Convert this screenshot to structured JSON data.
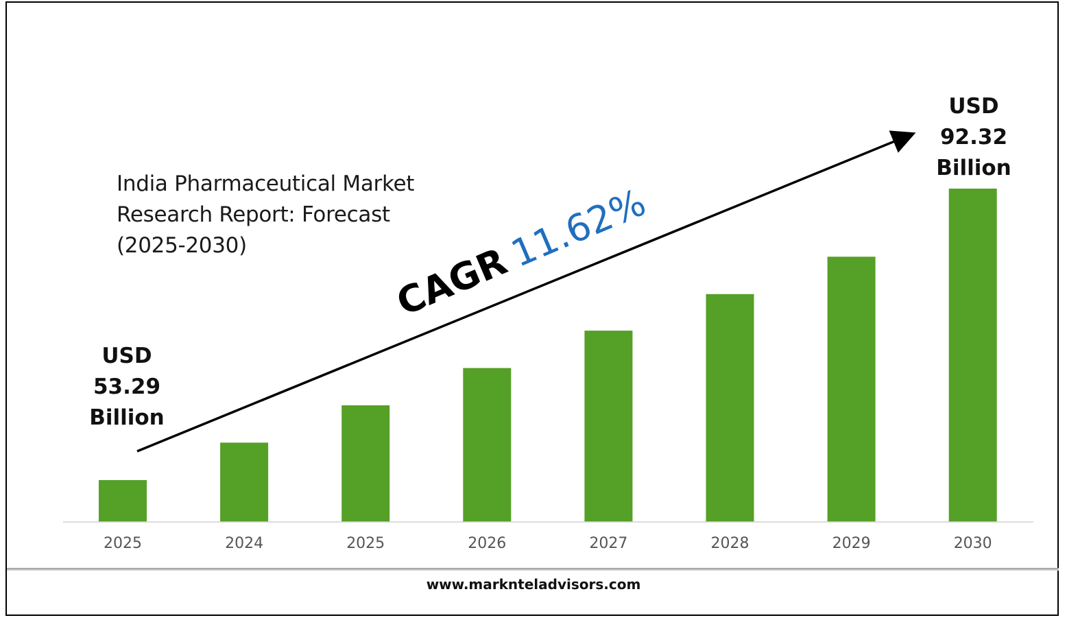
{
  "chart_data": {
    "type": "bar",
    "title": "India Pharmaceutical Market\nResearch Report: Forecast\n(2025-2030)",
    "categories": [
      "2025",
      "2024",
      "2025",
      "2026",
      "2027",
      "2028",
      "2029",
      "2030"
    ],
    "values": [
      53.29,
      58.3,
      63.3,
      68.3,
      73.3,
      78.2,
      83.2,
      92.32
    ],
    "units": "USD Billion",
    "bar_color": "#55a026",
    "annotations": {
      "start": {
        "line1": "USD",
        "line2": "53.29",
        "line3": "Billion"
      },
      "end": {
        "line1": "USD",
        "line2": "92.32",
        "line3": "Billion"
      },
      "cagr_label": "CAGR",
      "cagr_value": "11.62%",
      "cagr_color": "#1f6fbf"
    },
    "grid": false,
    "legend": "none"
  },
  "footer": {
    "website": "www.marknteladvisors.com"
  }
}
